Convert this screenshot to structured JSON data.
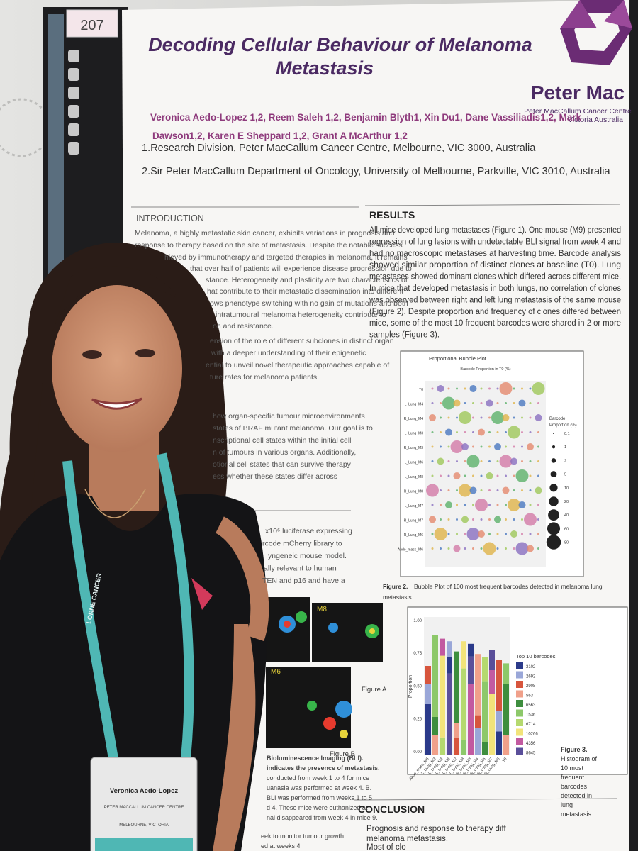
{
  "board_number": "207",
  "poster": {
    "title": [
      "Decoding Cellular Behaviour of Melanoma",
      "Metastasis"
    ],
    "authors": [
      "Veronica Aedo-Lopez 1,2, Reem Saleh 1,2, Benjamin Blyth1, Xin Du1, Dane Vassiliadis1,2, Mark",
      "Dawson1,2, Karen E Sheppard 1,2, Grant A McArthur 1,2"
    ],
    "logo": {
      "name": "Peter Mac",
      "org": "Peter MacCallum Cancer Centre",
      "place": "Victoria Australia"
    },
    "affiliations": [
      "1.Research Division, Peter MacCallum Cancer Centre, Melbourne, VIC 3000, Australia",
      "2.Sir Peter MacCallum Department of Oncology,  University of Melbourne, Parkville, VIC 3010, Australia"
    ],
    "introduction": {
      "heading": "INTRODUCTION",
      "lines": [
        "Melanoma, a highly metastatic skin cancer, exhibits variations in prognosis and",
        "response to therapy based on the site of metastasis. Despite the notable success",
        "hieved by immunotherapy and targeted therapies in melanoma, it remains",
        "that over half of patients will experience disease progression due to",
        "stance. Heterogeneity and plasticity are two characteristics of",
        "hat contribute to their metastatic dissemination into different",
        "ows phenotype switching with no gain of mutations and both",
        "intratumoural melanoma heterogeneity contribute to",
        "on and resistance.",
        "ension of the role of different subclones in distinct organ",
        "with a deeper understanding of their epigenetic",
        "ential to unveil novel therapeutic approaches capable of",
        "ture rates for melanoma patients.",
        "how organ-specific tumour microenvironments",
        "states of BRAF mutant melanoma. Our goal is to",
        "nscriptional cell states within the initial cell",
        "n of tumours in various organs. Additionally,",
        "otional cell states that can survive therapy",
        "ess whether these states differ across"
      ]
    },
    "methods": [
      "x10⁶ luciferase expressing",
      "rcode mCherry library to",
      "yngeneic mouse model.",
      "ally relevant to human",
      "TEN and p16 and have a"
    ],
    "figure1_caption": [
      "Bioluminescence Imaging (BLI).",
      "indicates the presence of metastasis.",
      "conducted from week 1 to 4 for mice",
      "uanasia was performed at week 4. B.",
      "BLI was performed from weeks 1 to 5",
      "d 4. These mice were euthanized at",
      "nal disappeared from week 4 in mice 9.",
      "eek to monitor tumour growth",
      "ed at weeks 4"
    ],
    "figure_a": "Figure A",
    "figure_b": "Figure B",
    "figure_m": "M8",
    "figure_m2": "M6",
    "results": {
      "heading": "RESULTS",
      "lines": [
        "All mice developed lung metastases (Figure 1). One mouse (M9) presented",
        "regression of lung lesions with undetectable BLI signal from week 4 and",
        "had no macroscopic metastases at harvesting time. Barcode analysis",
        "showed similar proportion of distinct clones at baseline (T0). Lung",
        "metastases showed dominant clones which differed across different mice.",
        "In mice that developed metastasis in both lungs, no correlation of clones",
        "was observed between right and left lung metastasis of the same mouse",
        "(Figure 2). Despite proportion and frequency of clones differed between",
        "mice, some of the most 10 frequent barcodes were shared in 2 or more",
        "samples (Figure 3)."
      ]
    },
    "figure2": {
      "title": "Proportional Bubble Plot",
      "top_axis": "Barcode Proportion in T0 (%)",
      "rows": [
        "T0",
        "L_Lung_M4",
        "R_Lung_M4",
        "L_Lung_M3",
        "R_Lung_M3",
        "L_Lung_M6",
        "L_Lung_M8",
        "R_Lung_M8",
        "L_Lung_M7",
        "R_Lung_M7",
        "R_Lung_M6",
        "Abdo_mass_M6"
      ],
      "legend_title": [
        "Barcode",
        "Proportion (%)"
      ],
      "legend_sizes": [
        "0.1",
        "1",
        "2",
        "5",
        "10",
        "20",
        "40",
        "60",
        "80"
      ],
      "caption": [
        "Figure 2.",
        "Bubble Plot of 100 most frequent barcodes detected in melanoma lung",
        "metastasis."
      ]
    },
    "figure3": {
      "y_label": "Proportion",
      "yticks": [
        "1.00",
        "0.75",
        "0.50",
        "0.25",
        "0.00"
      ],
      "categories": [
        "Abdo_mass_M6",
        "L_Lung_M3",
        "L_Lung_M4",
        "L_Lung_M6",
        "L_Lung_M7",
        "L_Lung_M8",
        "R_Lung_M3",
        "R_Lung_M4",
        "R_Lung_M6",
        "R_Lung_M7",
        "R_Lung_M8",
        "T0"
      ],
      "legend_title": "Top 10 barcodes",
      "legend": [
        "3102",
        "2692",
        "2908",
        "563",
        "6563",
        "1536",
        "6714",
        "10266",
        "4356",
        "8645"
      ],
      "caption": [
        "Figure 3.",
        "Histogram of",
        "10 most",
        "frequent",
        "barcodes",
        "detected in",
        "lung",
        "metastasis."
      ]
    },
    "conclusion": {
      "heading": "CONCLUSION",
      "lines": [
        "Prognosis and response to therapy diff",
        "melanoma metastasis.",
        "Most of clo"
      ]
    }
  },
  "badge": {
    "name": "Veronica Aedo-Lopez",
    "org": "PETER MACCALLUM CANCER CENTRE",
    "place": "MELBOURNE, VICTORIA"
  },
  "lanyard": "LORNE CANCER"
}
